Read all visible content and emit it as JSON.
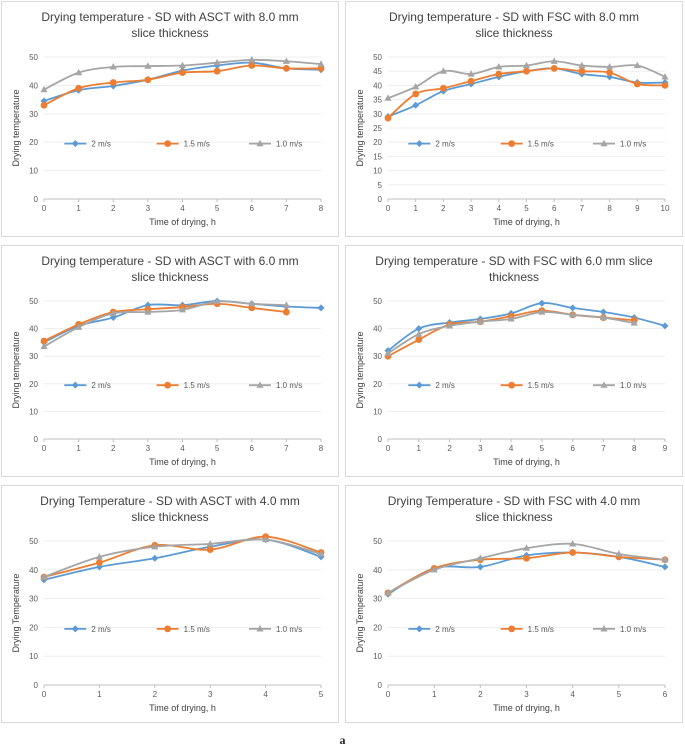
{
  "figure_label": "a",
  "series_styles": {
    "2 m/s": {
      "color": "#5B9BD5",
      "marker": "diamond"
    },
    "1.5 m/s": {
      "color": "#ED7D31",
      "marker": "circle"
    },
    "1.0 m/s": {
      "color": "#A5A5A5",
      "marker": "triangle"
    }
  },
  "chart_data": [
    {
      "id": "asct-8",
      "type": "line",
      "title_lines": [
        "Drying temperature - SD with ASCT with 8.0 mm",
        "slice thickness"
      ],
      "xlabel": "Time of drying, h",
      "ylabel": "Drying temperature",
      "xlim": [
        0,
        8
      ],
      "ylim": [
        0,
        50
      ],
      "x_ticks": [
        0,
        1,
        2,
        3,
        4,
        5,
        6,
        7,
        8
      ],
      "y_ticks": [
        0,
        10,
        20,
        30,
        40,
        50
      ],
      "legend": [
        "2 m/s",
        "1.5 m/s",
        "1.0 m/s"
      ],
      "series": [
        {
          "name": "2 m/s",
          "x": [
            0,
            1,
            2,
            3,
            4,
            5,
            6,
            7,
            8
          ],
          "values": [
            34.5,
            38.3,
            39.8,
            42,
            45.2,
            47,
            48,
            46,
            45.5
          ]
        },
        {
          "name": "1.5 m/s",
          "x": [
            0,
            1,
            2,
            3,
            4,
            5,
            6,
            7,
            8
          ],
          "values": [
            33,
            39,
            41,
            42,
            44.5,
            45,
            47,
            46,
            46
          ]
        },
        {
          "name": "1.0 m/s",
          "x": [
            0,
            1,
            2,
            3,
            4,
            5,
            6,
            7,
            8
          ],
          "values": [
            38.5,
            44.5,
            46.5,
            46.8,
            47,
            48,
            49,
            48.5,
            47.5
          ]
        }
      ]
    },
    {
      "id": "fsc-8",
      "type": "line",
      "title_lines": [
        "Drying temperature - SD with FSC with 8.0 mm",
        "slice thickness"
      ],
      "xlabel": "Time of drying, h",
      "ylabel": "Drying temperature",
      "xlim": [
        0,
        10
      ],
      "ylim": [
        0,
        50
      ],
      "x_ticks": [
        0,
        1,
        2,
        3,
        4,
        5,
        6,
        7,
        8,
        9,
        10
      ],
      "y_ticks": [
        0,
        5,
        10,
        15,
        20,
        25,
        30,
        35,
        40,
        45,
        50
      ],
      "legend": [
        "2 m/s",
        "1.5 m/s",
        "1.0 m/s"
      ],
      "series": [
        {
          "name": "2 m/s",
          "x": [
            0,
            1,
            2,
            3,
            4,
            5,
            6,
            7,
            8,
            9,
            10
          ],
          "values": [
            29,
            33,
            38,
            40.5,
            43,
            45,
            46,
            44,
            43,
            41,
            41
          ]
        },
        {
          "name": "1.5 m/s",
          "x": [
            0,
            1,
            2,
            3,
            4,
            5,
            6,
            7,
            8,
            9,
            10
          ],
          "values": [
            28.5,
            37,
            39,
            41.5,
            44,
            45,
            46,
            45,
            44.5,
            40.5,
            40
          ]
        },
        {
          "name": "1.0 m/s",
          "x": [
            0,
            1,
            2,
            3,
            4,
            5,
            6,
            7,
            8,
            9,
            10
          ],
          "values": [
            35.5,
            39.5,
            45,
            44,
            46.5,
            47,
            48.5,
            47,
            46.5,
            47,
            43
          ]
        }
      ]
    },
    {
      "id": "asct-6",
      "type": "line",
      "title_lines": [
        "Drying temperature - SD with ASCT with 6.0 mm",
        "slice thickness"
      ],
      "xlabel": "Time of drying, h",
      "ylabel": "Drying temperature",
      "xlim": [
        0,
        8
      ],
      "ylim": [
        0,
        50
      ],
      "x_ticks": [
        0,
        1,
        2,
        3,
        4,
        5,
        6,
        7,
        8
      ],
      "y_ticks": [
        0,
        10,
        20,
        30,
        40,
        50
      ],
      "legend": [
        "2 m/s",
        "1.5 m/s",
        "1.0 m/s"
      ],
      "series": [
        {
          "name": "2 m/s",
          "x": [
            0,
            1,
            2,
            3,
            4,
            5,
            6,
            7,
            8
          ],
          "values": [
            35,
            41,
            44,
            48.5,
            48.5,
            50,
            49,
            48,
            47.5
          ]
        },
        {
          "name": "1.5 m/s",
          "x": [
            0,
            1,
            2,
            3,
            4,
            5,
            6,
            7
          ],
          "values": [
            35.5,
            41.5,
            46,
            47,
            47.8,
            49,
            47.5,
            46
          ]
        },
        {
          "name": "1.0 m/s",
          "x": [
            0,
            1,
            2,
            3,
            4,
            5,
            6,
            7
          ],
          "values": [
            33.5,
            40.5,
            45.5,
            46,
            46.8,
            49.8,
            49,
            48.5
          ]
        }
      ]
    },
    {
      "id": "fsc-6",
      "type": "line",
      "title_lines": [
        "Drying temperature - SD with FSC with 6.0 mm slice",
        "thickness"
      ],
      "xlabel": "Time of drying, h",
      "ylabel": "Drying temperature",
      "xlim": [
        0,
        9
      ],
      "ylim": [
        0,
        50
      ],
      "x_ticks": [
        0,
        1,
        2,
        3,
        4,
        5,
        6,
        7,
        8,
        9
      ],
      "y_ticks": [
        0,
        10,
        20,
        30,
        40,
        50
      ],
      "legend": [
        "2 m/s",
        "1.5 m/s",
        "1.0 m/s"
      ],
      "series": [
        {
          "name": "2 m/s",
          "x": [
            0,
            1,
            2,
            3,
            4,
            5,
            6,
            7,
            8,
            9
          ],
          "values": [
            32,
            40,
            42.2,
            43.5,
            45.5,
            49.2,
            47.5,
            46,
            44,
            41
          ]
        },
        {
          "name": "1.5 m/s",
          "x": [
            0,
            1,
            2,
            3,
            4,
            5,
            6,
            7,
            8
          ],
          "values": [
            30,
            36,
            41.5,
            42.5,
            44.5,
            46.5,
            45,
            44,
            43
          ]
        },
        {
          "name": "1.0 m/s",
          "x": [
            0,
            1,
            2,
            3,
            4,
            5,
            6,
            7,
            8
          ],
          "values": [
            31,
            38,
            41,
            42.5,
            43.5,
            46,
            45,
            44,
            42
          ]
        }
      ]
    },
    {
      "id": "asct-4",
      "type": "line",
      "title_lines": [
        "Drying Temperature - SD with ASCT with 4.0 mm",
        "slice thickness"
      ],
      "xlabel": "Time of drying, h",
      "ylabel": "Drying Temperature",
      "xlim": [
        0,
        5
      ],
      "ylim": [
        0,
        50
      ],
      "x_ticks": [
        0,
        1,
        2,
        3,
        4,
        5
      ],
      "y_ticks": [
        0,
        10,
        20,
        30,
        40,
        50
      ],
      "legend": [
        "2 m/s",
        "1.5 m/s",
        "1.0 m/s"
      ],
      "series": [
        {
          "name": "2 m/s",
          "x": [
            0,
            1,
            2,
            3,
            4,
            5
          ],
          "values": [
            36.5,
            41,
            44,
            48,
            50.5,
            44.5
          ]
        },
        {
          "name": "1.5 m/s",
          "x": [
            0,
            1,
            2,
            3,
            4,
            5
          ],
          "values": [
            37.5,
            42.5,
            48.5,
            47,
            51.5,
            46
          ]
        },
        {
          "name": "1.0 m/s",
          "x": [
            0,
            1,
            2,
            3,
            4,
            5
          ],
          "values": [
            37.5,
            44.5,
            48,
            49,
            50.5,
            45.5
          ]
        }
      ]
    },
    {
      "id": "fsc-4",
      "type": "line",
      "title_lines": [
        "Drying Temperature - SD with FSC with 4.0 mm",
        "slice thickness"
      ],
      "xlabel": "Time of drying, h",
      "ylabel": "Drying Temperature",
      "xlim": [
        0,
        6
      ],
      "ylim": [
        0,
        50
      ],
      "x_ticks": [
        0,
        1,
        2,
        3,
        4,
        5,
        6
      ],
      "y_ticks": [
        0,
        10,
        20,
        30,
        40,
        50
      ],
      "legend": [
        "2 m/s",
        "1.5 m/s",
        "1.0 m/s"
      ],
      "series": [
        {
          "name": "2 m/s",
          "x": [
            0,
            1,
            2,
            3,
            4,
            5,
            6
          ],
          "values": [
            31.5,
            40.5,
            41,
            45,
            46,
            44.5,
            41
          ]
        },
        {
          "name": "1.5 m/s",
          "x": [
            0,
            1,
            2,
            3,
            4,
            5,
            6
          ],
          "values": [
            32,
            40.5,
            43.5,
            44,
            46,
            44.5,
            43.5
          ]
        },
        {
          "name": "1.0 m/s",
          "x": [
            0,
            1,
            2,
            3,
            4,
            5,
            6
          ],
          "values": [
            32,
            40,
            44,
            47.5,
            49,
            45.5,
            43.5
          ]
        }
      ]
    }
  ]
}
